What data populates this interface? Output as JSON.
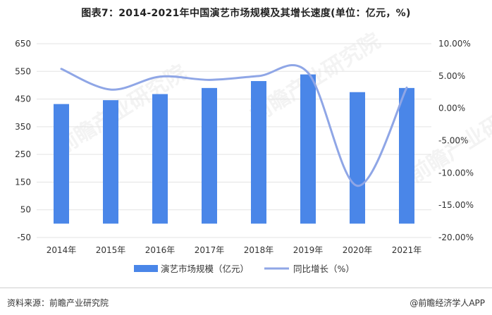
{
  "header": {
    "title": "图表7：2014-2021年中国演艺市场规模及其增长速度(单位：亿元，%)"
  },
  "watermark": {
    "text": "前瞻产业研究院"
  },
  "chart_data": {
    "type": "bar",
    "categories": [
      "2014年",
      "2015年",
      "2016年",
      "2017年",
      "2018年",
      "2019年",
      "2020年",
      "2021年"
    ],
    "series": [
      {
        "name": "演艺市场规模（亿元）",
        "type": "bar",
        "axis": "left",
        "values": [
          432,
          446,
          468,
          490,
          515,
          539,
          475,
          490
        ]
      },
      {
        "name": "同比增长（%）",
        "type": "line",
        "axis": "right",
        "values": [
          6.1,
          2.9,
          4.9,
          4.4,
          5.0,
          5.5,
          -12.0,
          3.2
        ]
      }
    ],
    "y_left": {
      "min": -50,
      "max": 650,
      "ticks": [
        "-50",
        "50",
        "150",
        "250",
        "350",
        "450",
        "550",
        "650"
      ]
    },
    "y_right": {
      "min": -20,
      "max": 10,
      "ticks": [
        "-20.00%",
        "-15.00%",
        "-10.00%",
        "-5.00%",
        "0.00%",
        "5.00%",
        "10.00%"
      ]
    },
    "colors": {
      "bar": "#4a86e8",
      "line": "#8fa6e6"
    },
    "grid": true,
    "legend_position": "bottom"
  },
  "footer": {
    "source": "资料来源：前瞻产业研究院",
    "brand": "@前瞻经济学人APP"
  }
}
